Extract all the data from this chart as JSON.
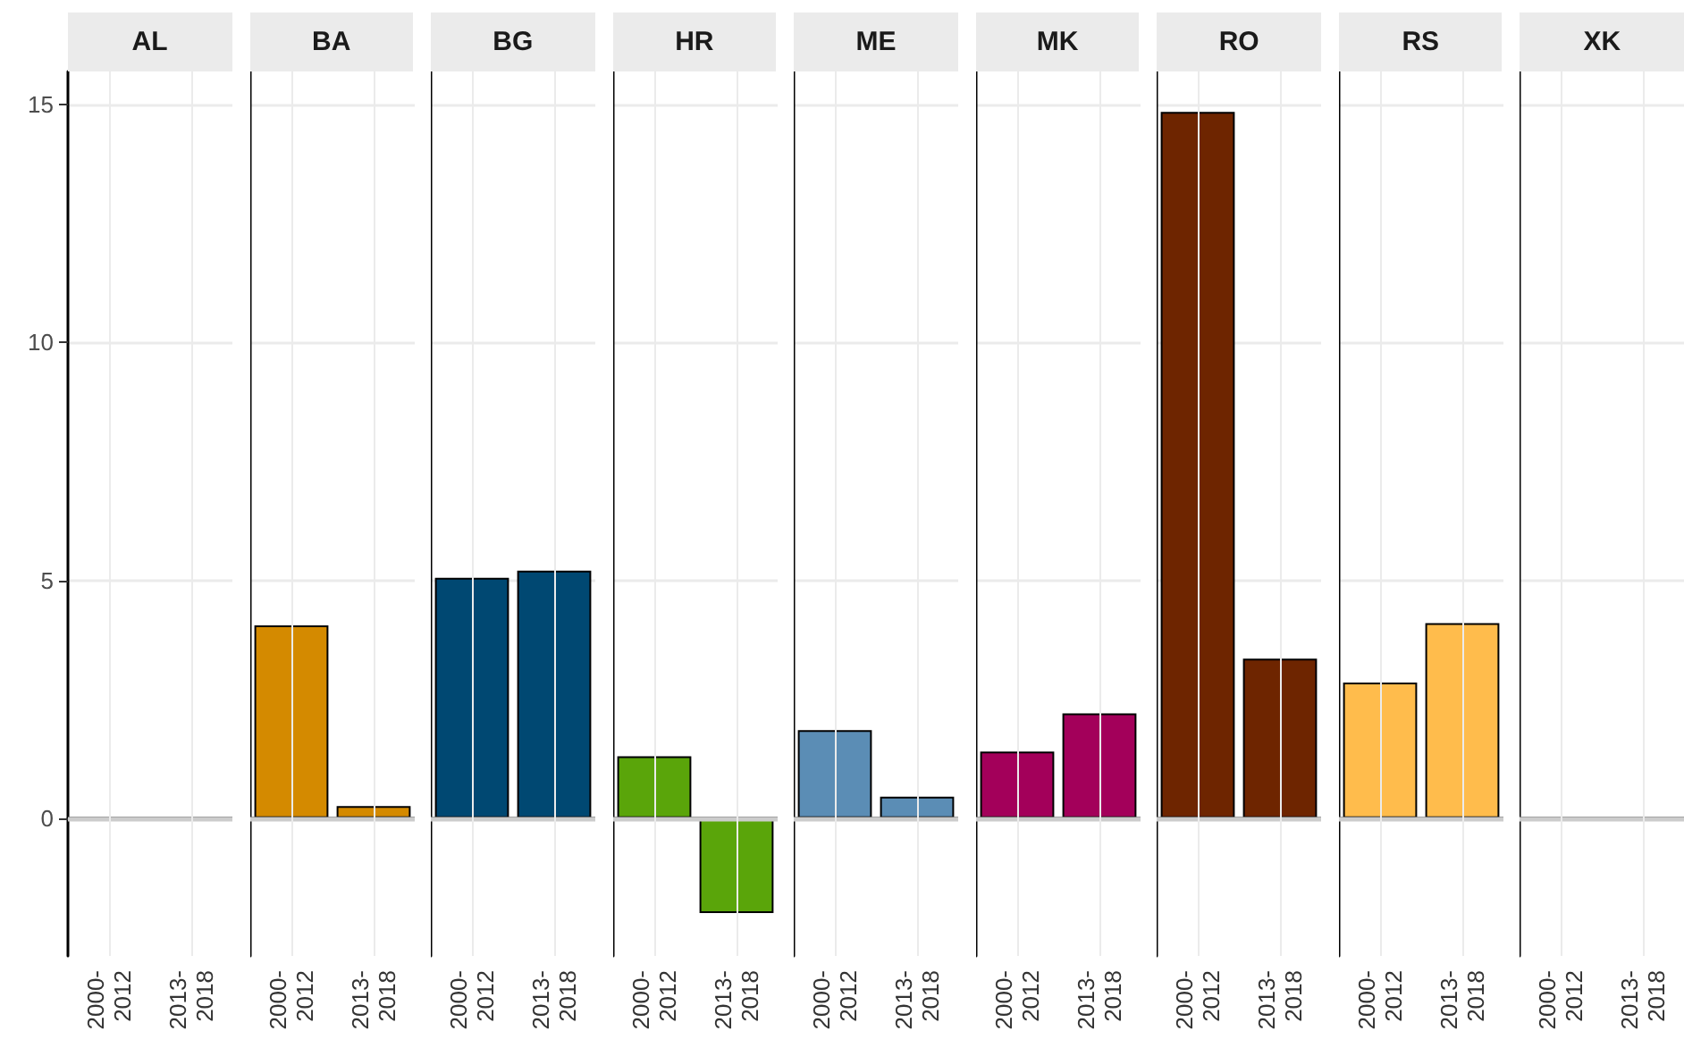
{
  "chart_data": [
    {
      "type": "bar",
      "title": "AL",
      "categories": [
        "2000-\n2012",
        "2013-\n2018"
      ],
      "values": [
        null,
        null
      ],
      "ylim": [
        -2.9,
        15.7
      ],
      "yticks": [
        0,
        5,
        10,
        15
      ],
      "grid": true,
      "ref_lines": [
        {
          "axis": "y",
          "value": 0,
          "color": "#cccccc"
        }
      ]
    },
    {
      "type": "bar",
      "title": "BA",
      "categories": [
        "2000-\n2012",
        "2013-\n2018"
      ],
      "values": [
        4.05,
        0.25
      ],
      "color": "#d48a00",
      "ylim": [
        -2.9,
        15.7
      ],
      "yticks": [
        0,
        5,
        10,
        15
      ],
      "grid": true,
      "tick_labels": "x",
      "ref_lines": [
        {
          "axis": "y",
          "value": 0,
          "color": "#cccccc"
        }
      ]
    },
    {
      "type": "bar",
      "title": "BG",
      "categories": [
        "2000-\n2012",
        "2013-\n2018"
      ],
      "values": [
        5.05,
        5.2
      ],
      "color": "#004872",
      "ylim": [
        -2.9,
        15.7
      ],
      "yticks": [
        0,
        5,
        10,
        15
      ],
      "grid": true,
      "tick_labels": "x",
      "ref_lines": [
        {
          "axis": "y",
          "value": 0,
          "color": "#cccccc"
        }
      ]
    },
    {
      "type": "bar",
      "title": "HR",
      "categories": [
        "2000-\n2012",
        "2013-\n2018"
      ],
      "values": [
        1.3,
        -2.0
      ],
      "color": "#5aa50a",
      "ylim": [
        -2.9,
        15.7
      ],
      "yticks": [
        0,
        5,
        10,
        15
      ],
      "grid": true,
      "tick_labels": "x",
      "ref_lines": [
        {
          "axis": "y",
          "value": 0,
          "color": "#cccccc"
        }
      ]
    },
    {
      "type": "bar",
      "title": "ME",
      "categories": [
        "2000-\n2012",
        "2013-\n2018"
      ],
      "values": [
        1.85,
        0.45
      ],
      "color": "#5b8db5",
      "ylim": [
        -2.9,
        15.7
      ],
      "yticks": [
        0,
        5,
        10,
        15
      ],
      "grid": true,
      "tick_labels": "x",
      "ref_lines": [
        {
          "axis": "y",
          "value": 0,
          "color": "#cccccc"
        }
      ]
    },
    {
      "type": "bar",
      "title": "MK",
      "categories": [
        "2000-\n2012",
        "2013-\n2018"
      ],
      "values": [
        1.4,
        2.2
      ],
      "color": "#a3005a",
      "ylim": [
        -2.9,
        15.7
      ],
      "yticks": [
        0,
        5,
        10,
        15
      ],
      "grid": true,
      "tick_labels": "x",
      "ref_lines": [
        {
          "axis": "y",
          "value": 0,
          "color": "#cccccc"
        }
      ]
    },
    {
      "type": "bar",
      "title": "RO",
      "categories": [
        "2000-\n2012",
        "2013-\n2018"
      ],
      "values": [
        14.85,
        3.35
      ],
      "color": "#6e2500",
      "ylim": [
        -2.9,
        15.7
      ],
      "yticks": [
        0,
        5,
        10,
        15
      ],
      "grid": true,
      "tick_labels": "x",
      "ref_lines": [
        {
          "axis": "y",
          "value": 0,
          "color": "#cccccc"
        }
      ]
    },
    {
      "type": "bar",
      "title": "RS",
      "categories": [
        "2000-\n2012",
        "2013-\n2018"
      ],
      "values": [
        2.85,
        4.1
      ],
      "color": "#ffbc4c",
      "ylim": [
        -2.9,
        15.7
      ],
      "yticks": [
        0,
        5,
        10,
        15
      ],
      "grid": true,
      "tick_labels": "x",
      "ref_lines": [
        {
          "axis": "y",
          "value": 0,
          "color": "#cccccc"
        }
      ]
    },
    {
      "type": "bar",
      "title": "XK",
      "categories": [
        "2000-\n2012",
        "2013-\n2018"
      ],
      "values": [
        null,
        null
      ],
      "ylim": [
        -2.9,
        15.7
      ],
      "yticks": [
        0,
        5,
        10,
        15
      ],
      "grid": true,
      "tick_labels": "x",
      "ref_lines": [
        {
          "axis": "y",
          "value": 0,
          "color": "#cccccc"
        }
      ]
    }
  ]
}
